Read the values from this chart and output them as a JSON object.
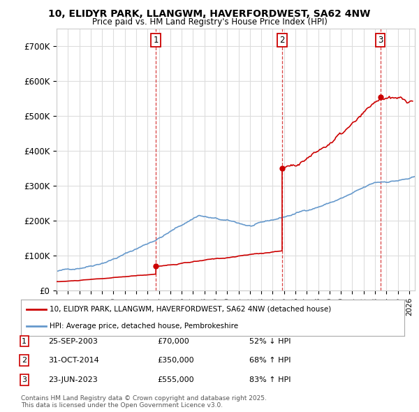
{
  "title_line1": "10, ELIDYR PARK, LLANGWM, HAVERFORDWEST, SA62 4NW",
  "title_line2": "Price paid vs. HM Land Registry's House Price Index (HPI)",
  "xlim_start": 1995.0,
  "xlim_end": 2026.5,
  "ylim_min": 0,
  "ylim_max": 750000,
  "yticks": [
    0,
    100000,
    200000,
    300000,
    400000,
    500000,
    600000,
    700000
  ],
  "ytick_labels": [
    "£0",
    "£100K",
    "£200K",
    "£300K",
    "£400K",
    "£500K",
    "£600K",
    "£700K"
  ],
  "sale_dates": [
    2003.73,
    2014.83,
    2023.48
  ],
  "sale_prices": [
    70000,
    350000,
    555000
  ],
  "sale_labels": [
    "1",
    "2",
    "3"
  ],
  "vline_color": "#cc0000",
  "sale_color": "#cc0000",
  "hpi_color": "#6699cc",
  "property_color": "#cc0000",
  "legend_property": "10, ELIDYR PARK, LLANGWM, HAVERFORDWEST, SA62 4NW (detached house)",
  "legend_hpi": "HPI: Average price, detached house, Pembrokeshire",
  "table_rows": [
    [
      "1",
      "25-SEP-2003",
      "£70,000",
      "52% ↓ HPI"
    ],
    [
      "2",
      "31-OCT-2014",
      "£350,000",
      "68% ↑ HPI"
    ],
    [
      "3",
      "23-JUN-2023",
      "£555,000",
      "83% ↑ HPI"
    ]
  ],
  "footer": "Contains HM Land Registry data © Crown copyright and database right 2025.\nThis data is licensed under the Open Government Licence v3.0.",
  "background_color": "#ffffff",
  "grid_color": "#dddddd"
}
